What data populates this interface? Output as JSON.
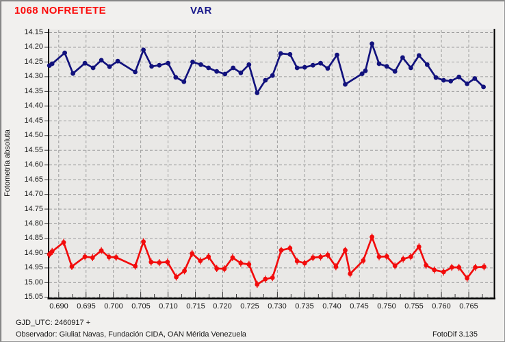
{
  "header": {
    "object_title": "1068 NOFRETETE",
    "object_title_color": "#fb0a0a",
    "series_label": "VAR",
    "series_label_color": "#17178a"
  },
  "footer": {
    "gjd_line": "GJD_UTC: 2460917 +",
    "observer_line": "Observador: Giuliat Navas, Fundación CIDA, OAN Mérida Venezuela",
    "software": "FotoDif 3.135"
  },
  "chart_data": {
    "type": "scatter",
    "title": "",
    "xlabel": "",
    "ylabel": "Fotometría absoluta",
    "grid": "dashed",
    "grid_color": "#9d9d9d",
    "plot_bg": "#e9e8e6",
    "axis_color": "#000000",
    "y_axis_inverted": true,
    "xlim": [
      0.68815,
      0.76975
    ],
    "ylim": [
      14.1418,
      15.0527
    ],
    "x_ticks": [
      0.69,
      0.695,
      0.7,
      0.705,
      0.71,
      0.715,
      0.72,
      0.725,
      0.73,
      0.735,
      0.74,
      0.745,
      0.75,
      0.755,
      0.76,
      0.765
    ],
    "x_minor_tick_step": 0.0025,
    "y_ticks": [
      14.15,
      14.2,
      14.25,
      14.3,
      14.35,
      14.4,
      14.45,
      14.5,
      14.55,
      14.6,
      14.65,
      14.7,
      14.75,
      14.8,
      14.85,
      14.9,
      14.95,
      15.0,
      15.05
    ],
    "series": [
      {
        "name": "VAR",
        "color": "#12127d",
        "marker": "circle",
        "yerr": 0.005,
        "x": [
          0.6883,
          0.6888,
          0.6911,
          0.6926,
          0.6948,
          0.6963,
          0.6978,
          0.6993,
          0.7008,
          0.704,
          0.7055,
          0.707,
          0.7084,
          0.71,
          0.7114,
          0.7129,
          0.7145,
          0.716,
          0.7174,
          0.7189,
          0.7204,
          0.7219,
          0.7233,
          0.7248,
          0.7263,
          0.7278,
          0.7291,
          0.7306,
          0.7323,
          0.7336,
          0.735,
          0.7365,
          0.7379,
          0.7392,
          0.7409,
          0.7424,
          0.7455,
          0.7461,
          0.7473,
          0.7486,
          0.75,
          0.7515,
          0.7529,
          0.7544,
          0.7559,
          0.7574,
          0.759,
          0.7604,
          0.7617,
          0.7632,
          0.7647,
          0.7661,
          0.7677
        ],
        "y": [
          14.262,
          14.256,
          14.219,
          14.289,
          14.254,
          14.27,
          14.244,
          14.266,
          14.247,
          14.284,
          14.209,
          14.265,
          14.261,
          14.254,
          14.302,
          14.317,
          14.25,
          14.259,
          14.27,
          14.282,
          14.291,
          14.27,
          14.287,
          14.259,
          14.355,
          14.312,
          14.296,
          14.221,
          14.224,
          14.27,
          14.268,
          14.261,
          14.254,
          14.272,
          14.226,
          14.326,
          14.29,
          14.28,
          14.188,
          14.256,
          14.265,
          14.282,
          14.235,
          14.27,
          14.228,
          14.259,
          14.303,
          14.312,
          14.315,
          14.301,
          14.324,
          14.306,
          14.335
        ]
      },
      {
        "name": "1068 NOFRETETE",
        "color": "#f20c0c",
        "marker": "circle",
        "yerr": 0.012,
        "x": [
          0.6883,
          0.6888,
          0.6909,
          0.6924,
          0.6948,
          0.6962,
          0.6978,
          0.6992,
          0.7005,
          0.704,
          0.7055,
          0.7069,
          0.7084,
          0.7099,
          0.7115,
          0.713,
          0.7144,
          0.7159,
          0.7174,
          0.7189,
          0.7203,
          0.7218,
          0.7233,
          0.7248,
          0.7263,
          0.7278,
          0.7291,
          0.7307,
          0.7323,
          0.7336,
          0.735,
          0.7365,
          0.7379,
          0.7392,
          0.7407,
          0.7424,
          0.7433,
          0.7457,
          0.7473,
          0.7486,
          0.75,
          0.7515,
          0.753,
          0.7544,
          0.7559,
          0.7572,
          0.7587,
          0.7604,
          0.7619,
          0.7632,
          0.7647,
          0.7662,
          0.7678
        ],
        "y": [
          14.904,
          14.894,
          14.863,
          14.945,
          14.912,
          14.915,
          14.891,
          14.913,
          14.914,
          14.944,
          14.861,
          14.93,
          14.932,
          14.93,
          14.981,
          14.96,
          14.901,
          14.926,
          14.912,
          14.952,
          14.953,
          14.915,
          14.934,
          14.938,
          15.006,
          14.988,
          14.983,
          14.89,
          14.883,
          14.927,
          14.934,
          14.915,
          14.913,
          14.906,
          14.946,
          14.89,
          14.97,
          14.925,
          14.845,
          14.912,
          14.911,
          14.943,
          14.92,
          14.912,
          14.878,
          14.941,
          14.957,
          14.964,
          14.948,
          14.948,
          14.985,
          14.948,
          14.946
        ]
      }
    ]
  }
}
